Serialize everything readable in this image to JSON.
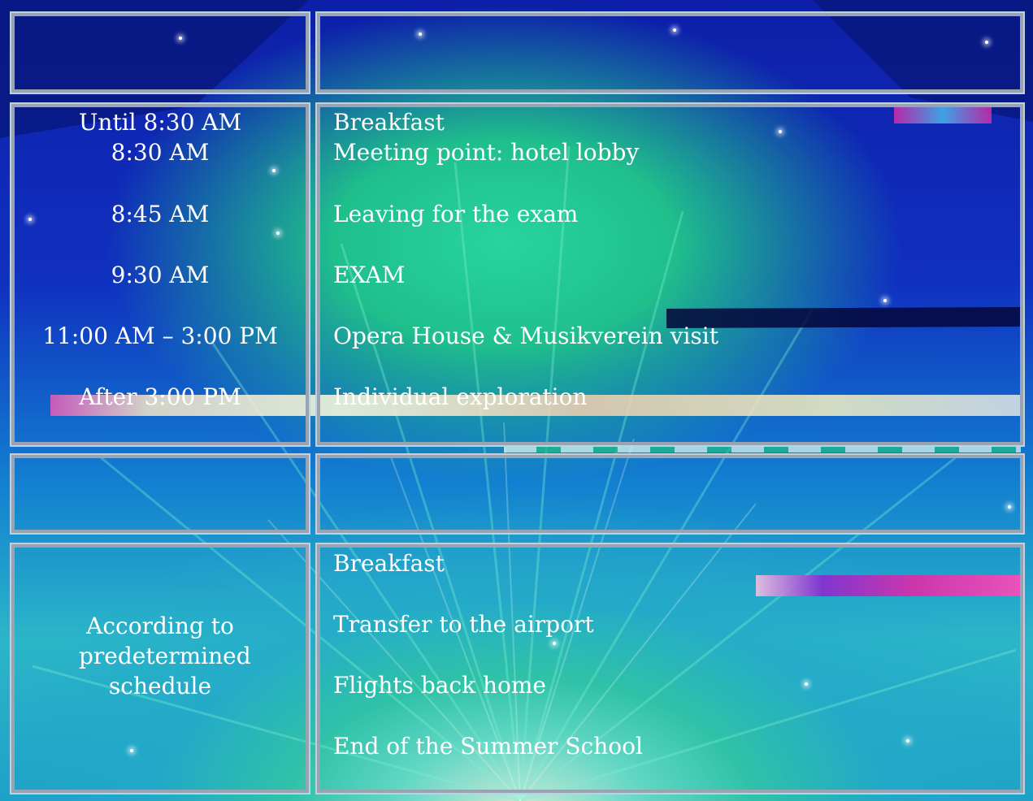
{
  "day1": {
    "rows": [
      {
        "time": "Until 8:30 AM",
        "activity": "Breakfast"
      },
      {
        "time": "8:30 AM",
        "activity": "Meeting point: hotel lobby"
      },
      {
        "time": "8:45 AM",
        "activity": "Leaving for the exam"
      },
      {
        "time": "9:30 AM",
        "activity": "EXAM"
      },
      {
        "time": "11:00 AM – 3:00 PM",
        "activity": "Opera House & Musikverein visit"
      },
      {
        "time": "After 3:00 PM",
        "activity": "Individual exploration"
      }
    ]
  },
  "day2": {
    "time_note": "According to predetermined schedule",
    "activities": [
      "Breakfast",
      "Transfer to the airport",
      "Flights back home",
      "End of the Summer School"
    ]
  },
  "colors": {
    "text": "#ffffff",
    "cell_border": "#9aa4b0",
    "background_deep": "#0d1fa8",
    "background_glow": "#2fc2a8"
  }
}
